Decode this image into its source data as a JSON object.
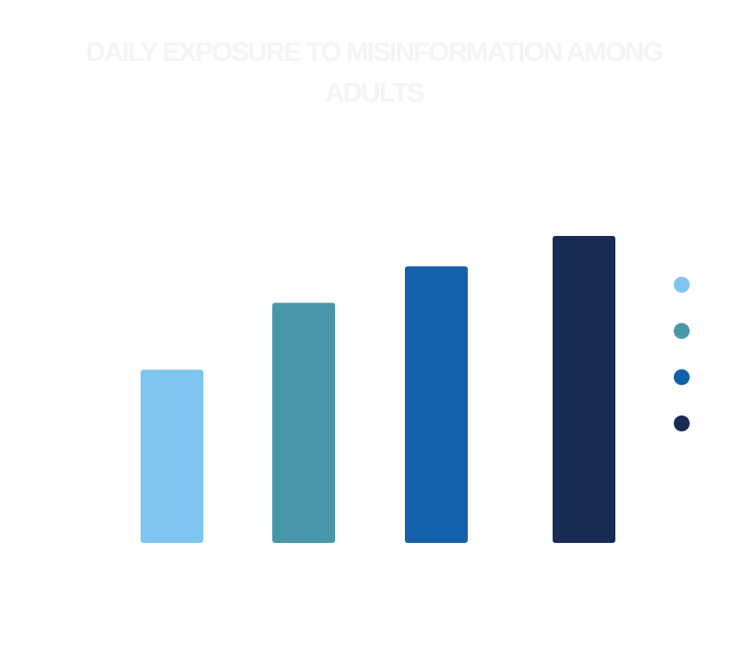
{
  "chart_data": {
    "type": "bar",
    "title": "DAILY EXPOSURE TO MISINFORMATION AMONG ADULTS",
    "categories": [
      "",
      "",
      "",
      ""
    ],
    "values": [
      57,
      79,
      91,
      101
    ],
    "colors": [
      "#7fc5f0",
      "#4896aa",
      "#1460ab",
      "#172b54"
    ],
    "legend": {
      "position": "right",
      "entries": [
        "",
        "",
        "",
        ""
      ]
    },
    "ylim": [
      0,
      110
    ],
    "grid": false,
    "xlabel": "",
    "ylabel": ""
  }
}
